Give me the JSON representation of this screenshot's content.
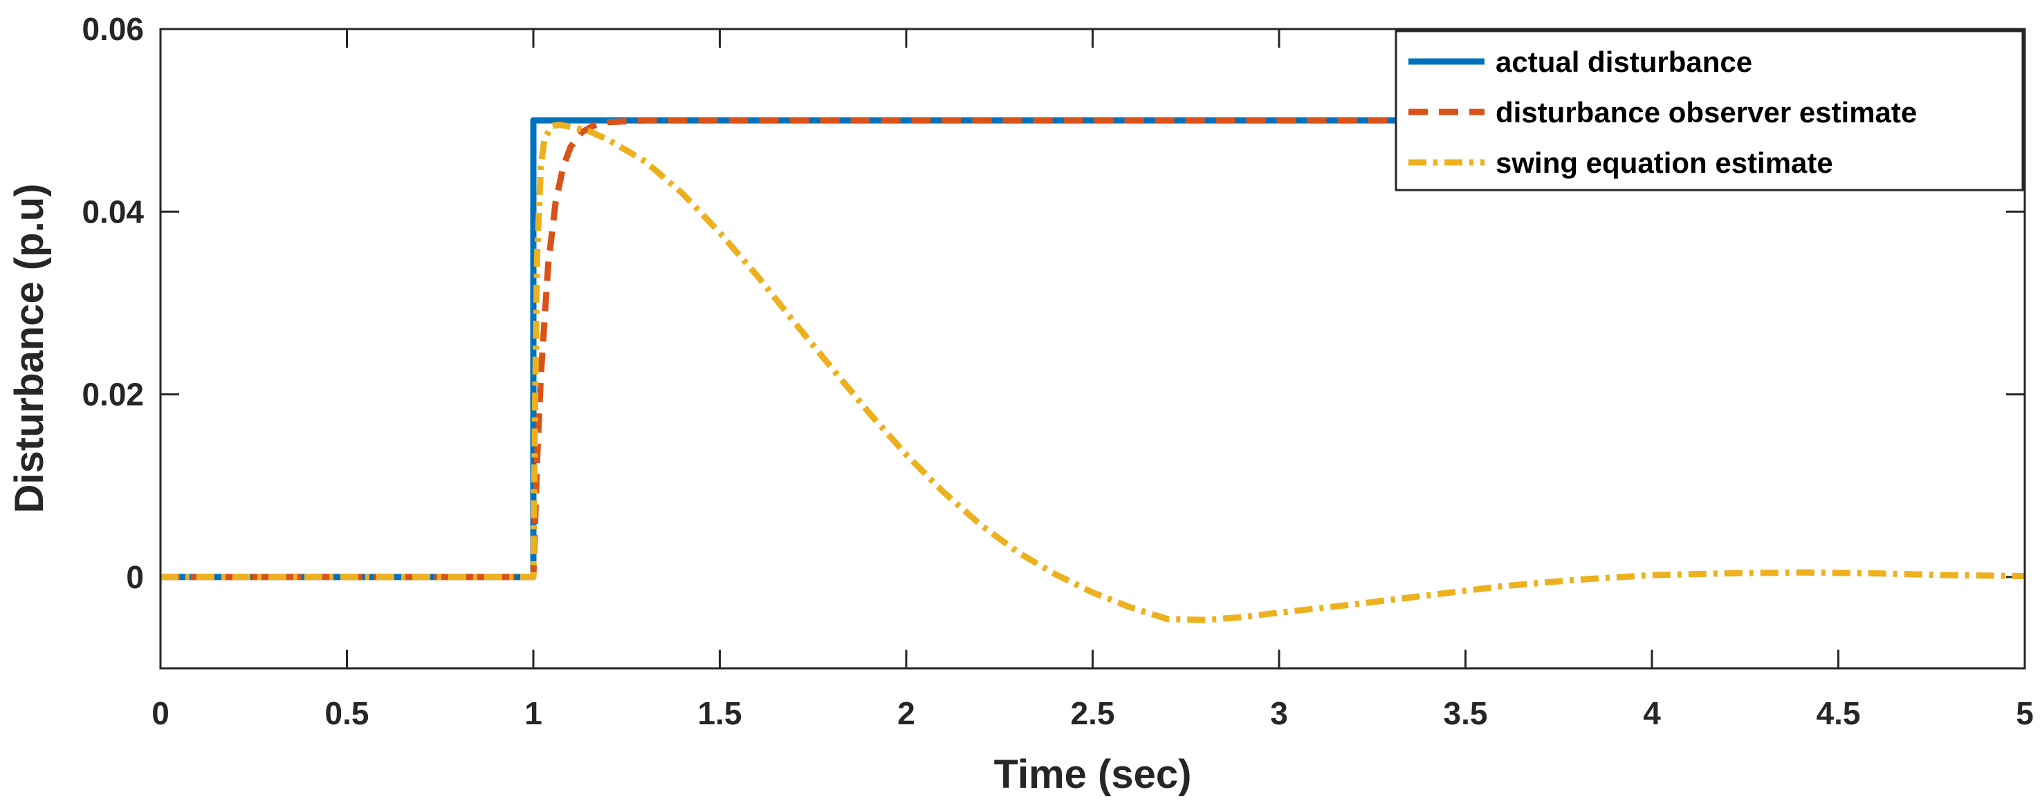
{
  "chart_data": {
    "type": "line",
    "title": "",
    "xlabel": "Time (sec)",
    "ylabel": "Disturbance (p.u)",
    "xlim": [
      0,
      5
    ],
    "ylim": [
      -0.01,
      0.06
    ],
    "xticks": [
      "0",
      "0.5",
      "1",
      "1.5",
      "2",
      "2.5",
      "3",
      "3.5",
      "4",
      "4.5",
      "5"
    ],
    "yticks": [
      "0",
      "0.02",
      "0.04",
      "0.06"
    ],
    "grid": false,
    "legend_position": "top-right",
    "series": [
      {
        "name": "actual disturbance",
        "color": "#0072BD",
        "style": "solid",
        "x": [
          0,
          1.0,
          1.0,
          5
        ],
        "y": [
          0,
          0,
          0.05,
          0.05
        ]
      },
      {
        "name": "disturbance observer estimate",
        "color": "#D95319",
        "style": "dashed",
        "x": [
          0,
          1.0,
          1.01,
          1.02,
          1.04,
          1.06,
          1.08,
          1.1,
          1.13,
          1.16,
          1.2,
          1.25,
          1.3,
          1.4,
          1.5,
          2,
          3,
          4,
          5
        ],
        "y": [
          0,
          0,
          0.0127,
          0.022,
          0.0343,
          0.0411,
          0.0449,
          0.0471,
          0.0487,
          0.0494,
          0.0498,
          0.0499,
          0.05,
          0.05,
          0.05,
          0.05,
          0.05,
          0.05,
          0.05
        ]
      },
      {
        "name": "swing equation estimate",
        "color": "#EDB120",
        "style": "dashdot",
        "x": [
          0,
          1.0,
          1.005,
          1.01,
          1.02,
          1.03,
          1.05,
          1.07,
          1.1,
          1.15,
          1.2,
          1.3,
          1.4,
          1.5,
          1.6,
          1.7,
          1.8,
          1.9,
          2.0,
          2.1,
          2.2,
          2.3,
          2.4,
          2.5,
          2.6,
          2.7,
          2.8,
          2.9,
          3.0,
          3.2,
          3.4,
          3.6,
          3.8,
          4.0,
          4.2,
          4.4,
          4.6,
          4.8,
          5.0
        ],
        "y": [
          0,
          0,
          0.02,
          0.035,
          0.045,
          0.048,
          0.0494,
          0.0495,
          0.0493,
          0.0488,
          0.0479,
          0.0455,
          0.042,
          0.0377,
          0.033,
          0.0279,
          0.0229,
          0.018,
          0.0134,
          0.0093,
          0.0057,
          0.0027,
          0.0003,
          -0.0017,
          -0.0033,
          -0.0046,
          -0.0047,
          -0.0044,
          -0.0039,
          -0.003,
          -0.002,
          -0.001,
          -0.0003,
          0.0002,
          0.0004,
          0.0005,
          0.0004,
          0.0002,
          0.0001
        ]
      }
    ]
  }
}
